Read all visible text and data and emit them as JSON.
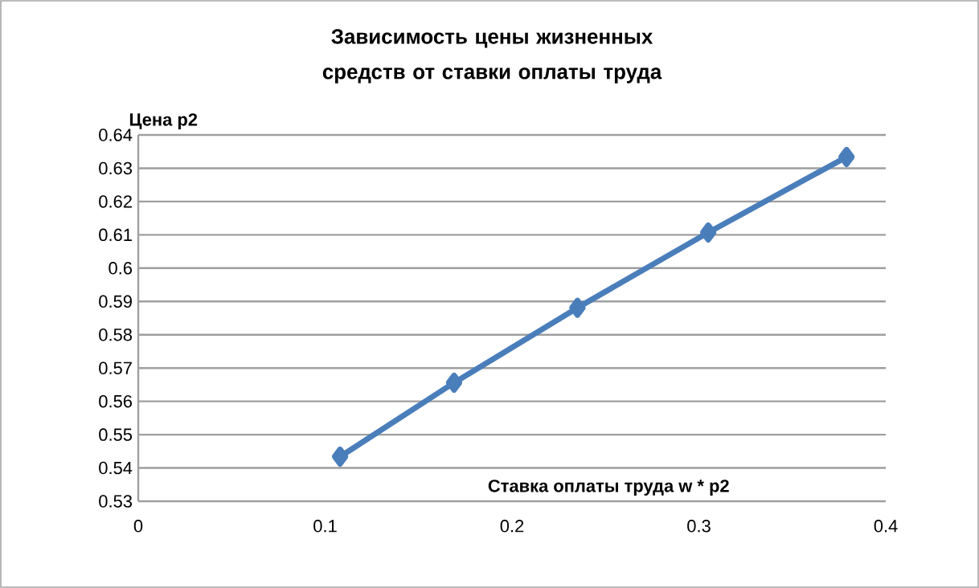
{
  "chart_data": {
    "type": "line",
    "title": "Зависимость цены жизненных средств от ставки оплаты труда",
    "xlabel": "Ставка  оплаты труда w * p2",
    "ylabel": "Цена  p2",
    "x": [
      0.108,
      0.169,
      0.235,
      0.305,
      0.379
    ],
    "series": [
      {
        "color": "#4a7ebb",
        "values": [
          0.5434,
          0.5656,
          0.5881,
          0.6107,
          0.6334
        ]
      }
    ],
    "xlim": [
      0,
      0.4
    ],
    "xticks": [
      0,
      0.1,
      0.2,
      0.3,
      0.4
    ],
    "ylim": [
      0.53,
      0.64
    ],
    "yticks": [
      0.53,
      0.54,
      0.55,
      0.56,
      0.57,
      0.58,
      0.59,
      0.6,
      0.61,
      0.62,
      0.63,
      0.64
    ],
    "grid": "y",
    "marker": "diamond",
    "line_style": "solid"
  }
}
